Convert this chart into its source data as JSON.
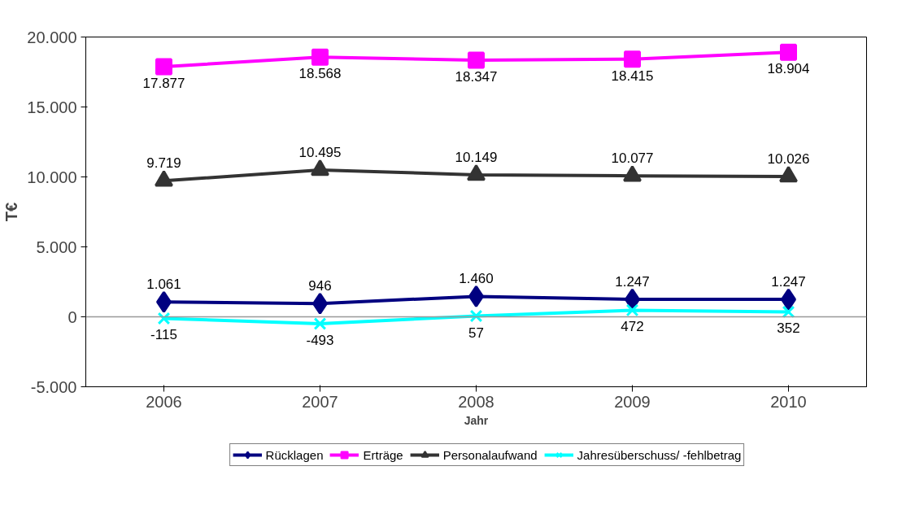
{
  "chart_data": {
    "type": "line",
    "xlabel": "Jahr",
    "ylabel": "T€",
    "categories": [
      "2006",
      "2007",
      "2008",
      "2009",
      "2010"
    ],
    "series": [
      {
        "name": "Rücklagen",
        "color": "#000080",
        "marker": "diamond",
        "values": [
          1061,
          946,
          1460,
          1247,
          1247
        ],
        "value_labels": [
          "1.061",
          "946",
          "1.460",
          "1.247",
          "1.247"
        ]
      },
      {
        "name": "Erträge",
        "color": "#ff00ff",
        "marker": "square",
        "values": [
          17877,
          18568,
          18347,
          18415,
          18904
        ],
        "value_labels": [
          "17.877",
          "18.568",
          "18.347",
          "18.415",
          "18.904"
        ]
      },
      {
        "name": "Personalaufwand",
        "color": "#333333",
        "marker": "triangle",
        "values": [
          9719,
          10495,
          10149,
          10077,
          10026
        ],
        "value_labels": [
          "9.719",
          "10.495",
          "10.149",
          "10.077",
          "10.026"
        ]
      },
      {
        "name": "Jahresüberschuss/ -fehlbetrag",
        "color": "#00ffff",
        "marker": "cross",
        "values": [
          -115,
          -493,
          57,
          472,
          352
        ],
        "value_labels": [
          "-115",
          "-493",
          "57",
          "472",
          "352"
        ]
      }
    ],
    "ylim": [
      -5000,
      20000
    ],
    "yticks": [
      {
        "value": -5000,
        "label": "-5.000"
      },
      {
        "value": 0,
        "label": "0"
      },
      {
        "value": 5000,
        "label": "5.000"
      },
      {
        "value": 10000,
        "label": "10.000"
      },
      {
        "value": 15000,
        "label": "15.000"
      },
      {
        "value": 20000,
        "label": "20.000"
      }
    ],
    "ref_lines": [
      {
        "axis": "y",
        "value": 0,
        "color": "#999999"
      }
    ],
    "grid": false,
    "legend": "bottom",
    "line_style": "solid"
  }
}
